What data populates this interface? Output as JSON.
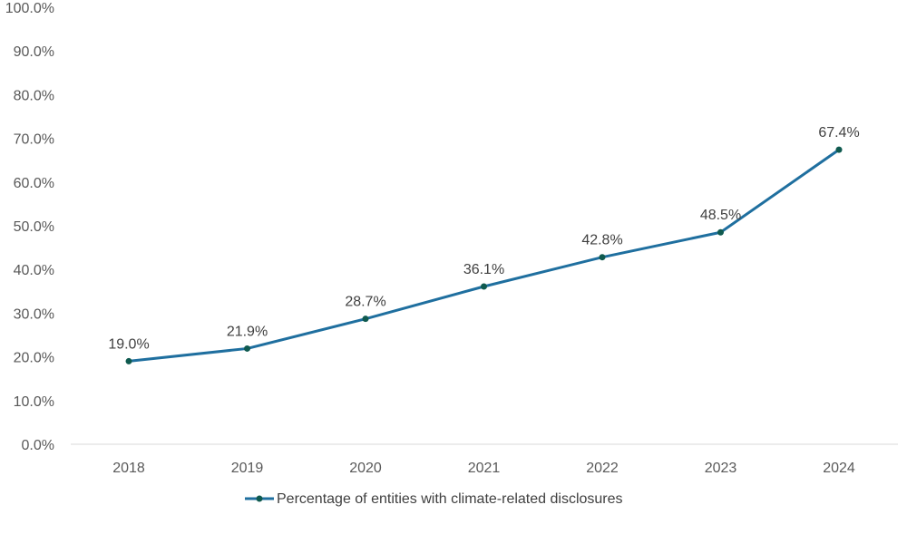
{
  "chart_data": {
    "type": "line",
    "title": "",
    "xlabel": "",
    "ylabel": "",
    "categories": [
      "2018",
      "2019",
      "2020",
      "2021",
      "2022",
      "2023",
      "2024"
    ],
    "series": [
      {
        "name": "Percentage of entities with climate-related disclosures",
        "values": [
          19.0,
          21.9,
          28.7,
          36.1,
          42.8,
          48.5,
          67.4
        ],
        "data_labels": [
          "19.0%",
          "21.9%",
          "28.7%",
          "36.1%",
          "42.8%",
          "48.5%",
          "67.4%"
        ],
        "color": "#1f6f9f",
        "marker_color": "#0f5a4f"
      }
    ],
    "ylim": [
      0,
      100
    ],
    "y_ticks": [
      0,
      10,
      20,
      30,
      40,
      50,
      60,
      70,
      80,
      90,
      100
    ],
    "y_tick_labels": [
      "0.0%",
      "10.0%",
      "20.0%",
      "30.0%",
      "40.0%",
      "50.0%",
      "60.0%",
      "70.0%",
      "80.0%",
      "90.0%",
      "100.0%"
    ],
    "grid": false,
    "legend": {
      "position": "bottom"
    },
    "colors": {
      "axis_line": "#d9d9d9",
      "tick_text": "#595959",
      "label_text": "#404040"
    }
  }
}
